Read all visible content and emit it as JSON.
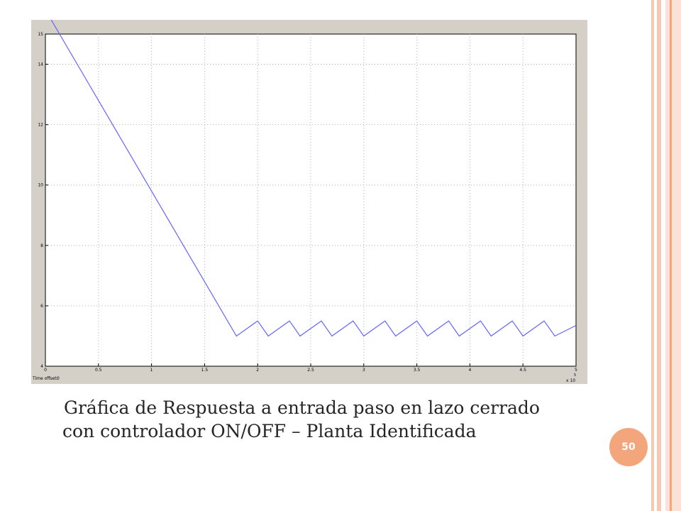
{
  "slide": {
    "caption": "Gráfica de Respuesta a entrada paso en lazo cerrado con controlador ON/OFF – Planta Identificada",
    "page_number": "50",
    "accent_color": "#f3a57c",
    "border_color": "#f6c9b3"
  },
  "chart_data": {
    "type": "line",
    "grid": true,
    "xlim": [
      0,
      5
    ],
    "ylim": [
      4,
      15
    ],
    "x_ticks": [
      "0",
      "0.5",
      "1",
      "1.5",
      "2",
      "2.5",
      "3",
      "3.5",
      "4",
      "4.5",
      "5"
    ],
    "y_ticks": [
      "4",
      "6",
      "8",
      "10",
      "12",
      "14",
      "15"
    ],
    "x_exponent_label": "x 10",
    "x_exponent": "5",
    "time_offset_label": "Time offset:",
    "time_offset_value": "0",
    "line_color": "#6464ff",
    "series": [
      {
        "x": [
          0.05,
          1.8,
          2.0,
          2.1,
          2.3,
          2.4,
          2.6,
          2.7,
          2.9,
          3.0,
          3.2,
          3.3,
          3.5,
          3.6,
          3.8,
          3.9,
          4.1,
          4.2,
          4.4,
          4.5,
          4.7,
          4.8,
          5.0
        ],
        "y": [
          15.5,
          5.0,
          5.5,
          5.0,
          5.5,
          5.0,
          5.5,
          5.0,
          5.5,
          5.0,
          5.5,
          5.0,
          5.5,
          5.0,
          5.5,
          5.0,
          5.5,
          5.0,
          5.5,
          5.0,
          5.5,
          5.0,
          5.35
        ]
      }
    ]
  }
}
